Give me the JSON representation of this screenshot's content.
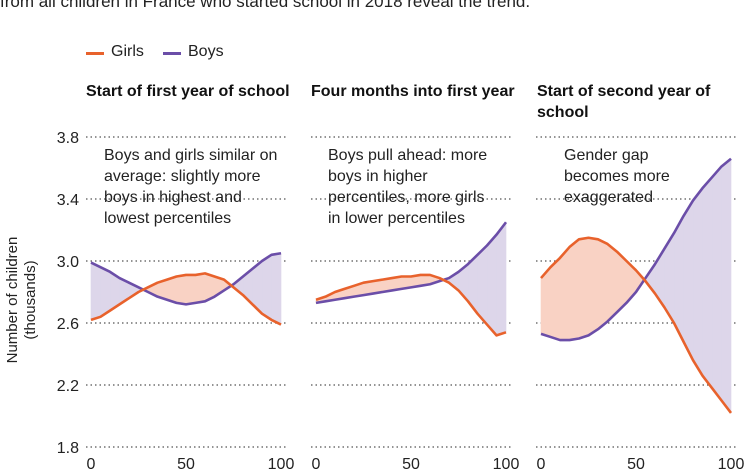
{
  "intro_text": "from all children in France who started school in 2018 reveal the trend.",
  "legend": {
    "girls_label": "Girls",
    "boys_label": "Boys"
  },
  "colors": {
    "girls": "#e8622c",
    "boys": "#6b4ea8",
    "girls_fill": "#f9d2c4",
    "boys_fill": "#ddd6ea",
    "grid": "#555555"
  },
  "ylabel": {
    "line1": "Number of children",
    "line2": "(thousands)"
  },
  "chart_data": {
    "type": "line",
    "y_ticks": [
      "1.8",
      "2.2",
      "2.6",
      "3.0",
      "3.4",
      "3.8"
    ],
    "x_ticks": [
      "0",
      "50",
      "100"
    ],
    "ylim": [
      1.8,
      3.8
    ],
    "xlim": [
      0,
      100
    ],
    "grid": "horizontal dotted",
    "panels": [
      {
        "title": "Start of first year of school",
        "annotation": "Boys and girls similar on average: slightly more boys in highest and lowest percentiles",
        "series": [
          {
            "name": "Girls",
            "x": [
              0,
              5,
              10,
              15,
              20,
              25,
              30,
              35,
              40,
              45,
              50,
              55,
              60,
              65,
              70,
              75,
              80,
              85,
              90,
              95,
              100
            ],
            "values": [
              2.62,
              2.64,
              2.68,
              2.72,
              2.76,
              2.8,
              2.83,
              2.86,
              2.88,
              2.9,
              2.91,
              2.91,
              2.92,
              2.9,
              2.88,
              2.83,
              2.78,
              2.72,
              2.66,
              2.62,
              2.59
            ]
          },
          {
            "name": "Boys",
            "x": [
              0,
              5,
              10,
              15,
              20,
              25,
              30,
              35,
              40,
              45,
              50,
              55,
              60,
              65,
              70,
              75,
              80,
              85,
              90,
              95,
              100
            ],
            "values": [
              2.99,
              2.96,
              2.93,
              2.89,
              2.86,
              2.83,
              2.8,
              2.77,
              2.75,
              2.73,
              2.72,
              2.73,
              2.74,
              2.77,
              2.81,
              2.85,
              2.9,
              2.95,
              3.0,
              3.04,
              3.05
            ]
          }
        ]
      },
      {
        "title": "Four months into first year",
        "annotation": "Boys pull ahead: more boys in higher percentiles, more girls in lower percentiles",
        "series": [
          {
            "name": "Girls",
            "x": [
              0,
              5,
              10,
              15,
              20,
              25,
              30,
              35,
              40,
              45,
              50,
              55,
              60,
              65,
              70,
              75,
              80,
              85,
              90,
              95,
              100
            ],
            "values": [
              2.75,
              2.77,
              2.8,
              2.82,
              2.84,
              2.86,
              2.87,
              2.88,
              2.89,
              2.9,
              2.9,
              2.91,
              2.91,
              2.89,
              2.86,
              2.81,
              2.74,
              2.66,
              2.59,
              2.52,
              2.54
            ]
          },
          {
            "name": "Boys",
            "x": [
              0,
              5,
              10,
              15,
              20,
              25,
              30,
              35,
              40,
              45,
              50,
              55,
              60,
              65,
              70,
              75,
              80,
              85,
              90,
              95,
              100
            ],
            "values": [
              2.73,
              2.74,
              2.75,
              2.76,
              2.77,
              2.78,
              2.79,
              2.8,
              2.81,
              2.82,
              2.83,
              2.84,
              2.85,
              2.87,
              2.89,
              2.93,
              2.98,
              3.04,
              3.1,
              3.17,
              3.25
            ]
          }
        ]
      },
      {
        "title": "Start of second year of school",
        "annotation": "Gender gap becomes more exaggerated",
        "series": [
          {
            "name": "Girls",
            "x": [
              0,
              5,
              10,
              15,
              20,
              25,
              30,
              35,
              40,
              45,
              50,
              55,
              60,
              65,
              70,
              75,
              80,
              85,
              90,
              95,
              100
            ],
            "values": [
              2.89,
              2.96,
              3.02,
              3.09,
              3.14,
              3.15,
              3.14,
              3.11,
              3.06,
              3.0,
              2.94,
              2.87,
              2.79,
              2.7,
              2.6,
              2.48,
              2.36,
              2.26,
              2.18,
              2.1,
              2.02
            ]
          },
          {
            "name": "Boys",
            "x": [
              0,
              5,
              10,
              15,
              20,
              25,
              30,
              35,
              40,
              45,
              50,
              55,
              60,
              65,
              70,
              75,
              80,
              85,
              90,
              95,
              100
            ],
            "values": [
              2.53,
              2.51,
              2.49,
              2.49,
              2.5,
              2.52,
              2.56,
              2.61,
              2.67,
              2.73,
              2.8,
              2.89,
              2.98,
              3.08,
              3.18,
              3.29,
              3.39,
              3.47,
              3.54,
              3.61,
              3.66
            ]
          }
        ]
      }
    ]
  }
}
